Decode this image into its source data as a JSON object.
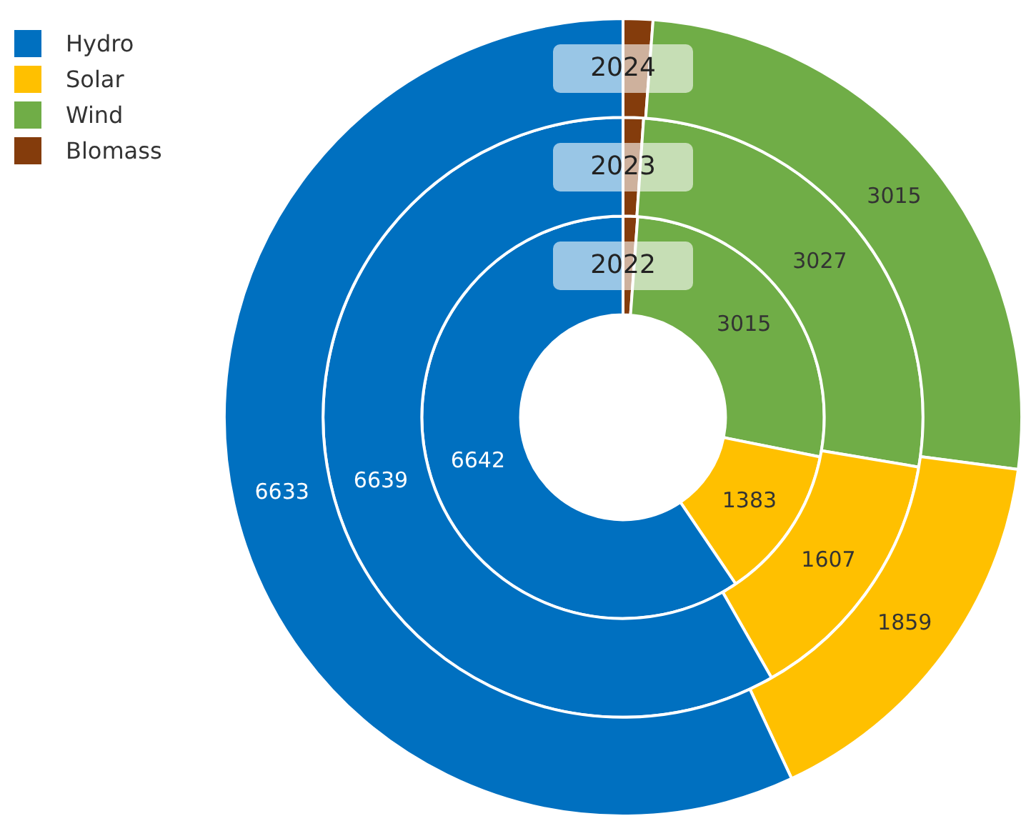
{
  "chart_data": {
    "type": "donut",
    "categories": [
      "Hydro",
      "Solar",
      "Wind",
      "Blomass"
    ],
    "colors": [
      "#0070c0",
      "#ffc000",
      "#70ad47",
      "#843c0c"
    ],
    "series": [
      {
        "name": "2024",
        "values": [
          6633,
          1859,
          3015,
          140
        ],
        "value_labels": [
          "6633",
          "1859",
          "3015",
          null
        ]
      },
      {
        "name": "2023",
        "values": [
          6639,
          1607,
          3027,
          125
        ],
        "value_labels": [
          "6639",
          "1607",
          "3027",
          null
        ]
      },
      {
        "name": "2022",
        "values": [
          6642,
          1383,
          3015,
          130
        ],
        "value_labels": [
          "6642",
          "1383",
          "3015",
          null
        ]
      }
    ],
    "legend": "top left"
  }
}
